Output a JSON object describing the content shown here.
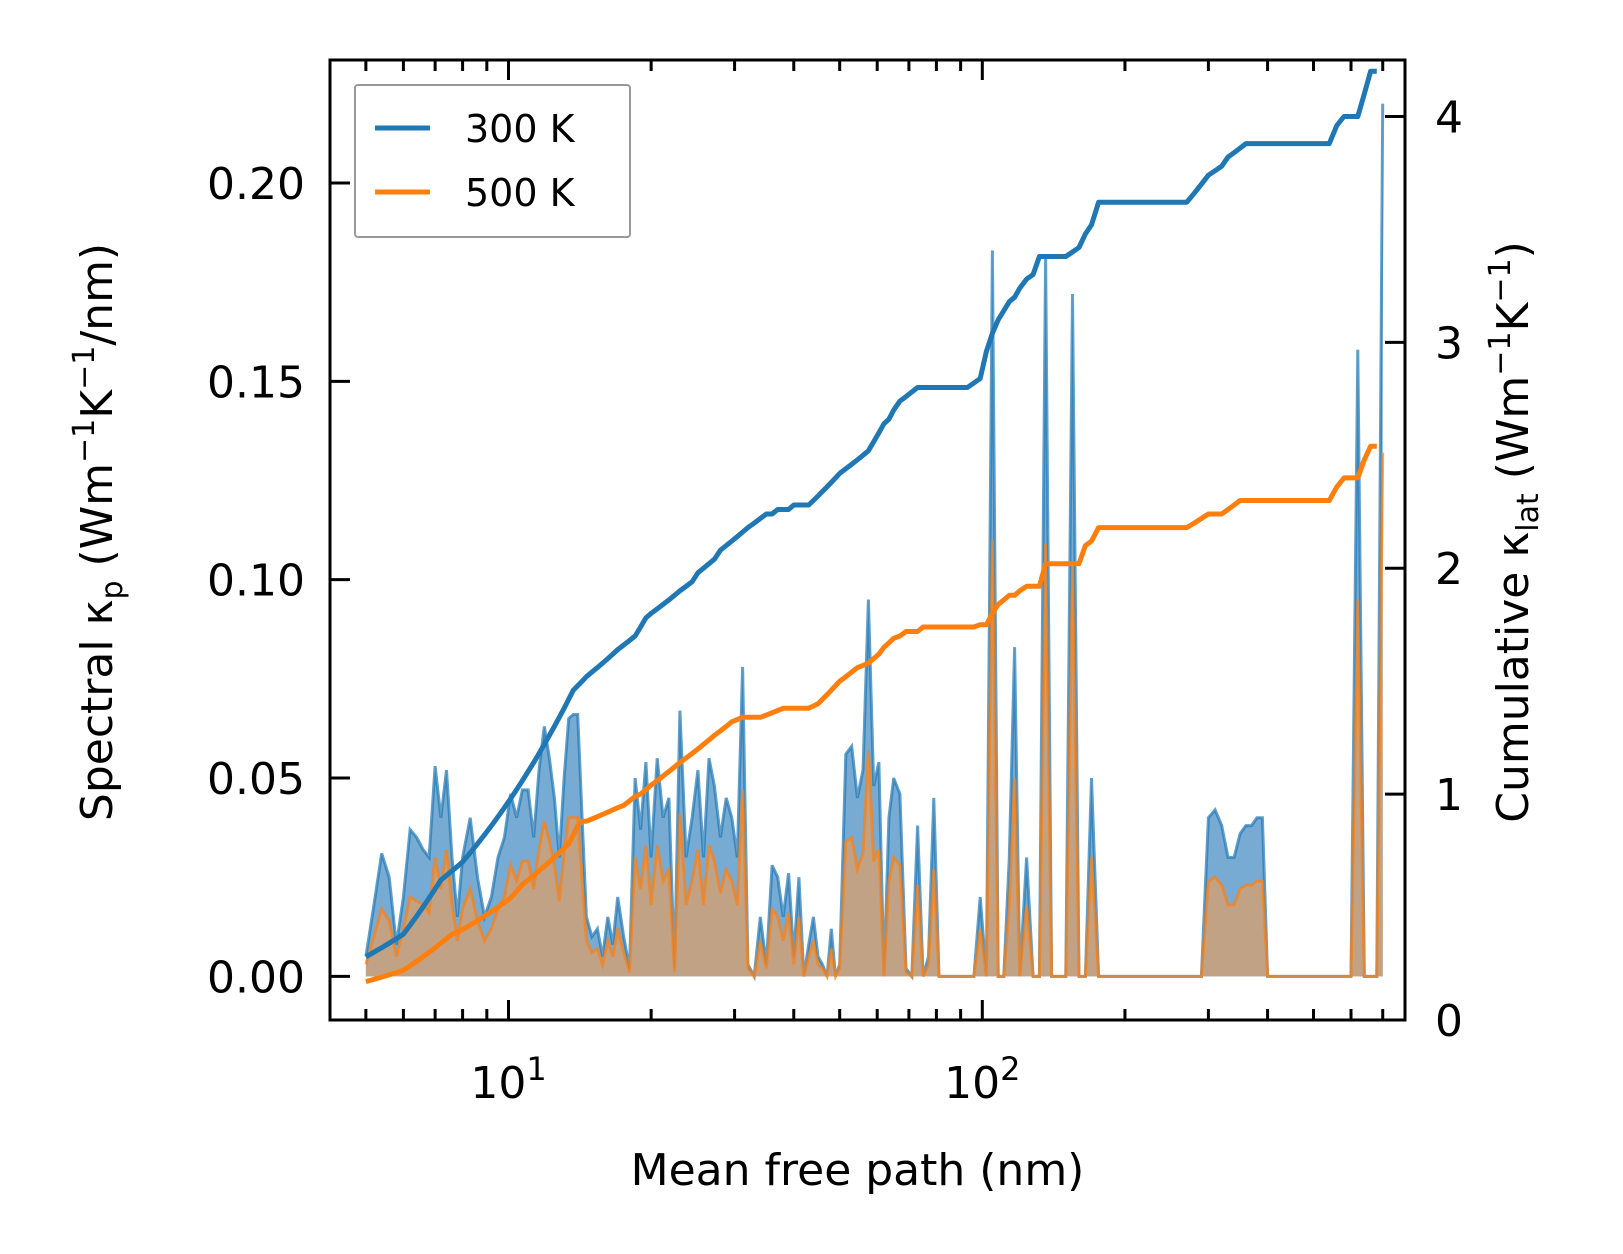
{
  "chart_data": {
    "type": "line",
    "x_scale": "log",
    "xlabel": "Mean free path (nm)",
    "ylabel_left": {
      "text": "Spectral κ",
      "sub": "p",
      "units_pre": " (Wm",
      "sup1": "−1",
      "mid": "K",
      "sup2": "−1",
      "units_post": "/nm)"
    },
    "ylabel_right": {
      "text": "Cumulative κ",
      "sub": "lat",
      "units_pre": " (Wm",
      "sup1": "−1",
      "mid": "K",
      "sup2": "−1",
      "units_post": ")"
    },
    "xlim": [
      4.2,
      780
    ],
    "ylim_left": [
      -0.011,
      0.231
    ],
    "ylim_right": [
      0,
      4.25
    ],
    "x_ticks": [
      {
        "value": 10,
        "base": "10",
        "exp": "1"
      },
      {
        "value": 100,
        "base": "10",
        "exp": "2"
      }
    ],
    "y_ticks_left": [
      "0.00",
      "0.05",
      "0.10",
      "0.15",
      "0.20"
    ],
    "y_ticks_right": [
      "0",
      "1",
      "2",
      "3",
      "4"
    ],
    "legend": {
      "position": "top-left",
      "entries": [
        "300 K",
        "500 K"
      ]
    },
    "colors": {
      "300 K": "#1f77b4",
      "500 K": "#ff7f0e",
      "fill_300": "#4a8fc4",
      "fill_500": "#d4a070"
    },
    "x": [
      5.0,
      5.2,
      5.4,
      5.6,
      5.8,
      6.0,
      6.2,
      6.4,
      6.6,
      6.8,
      7.0,
      7.2,
      7.4,
      7.6,
      7.8,
      8.0,
      8.3,
      8.6,
      8.9,
      9.2,
      9.5,
      9.8,
      10.1,
      10.4,
      10.7,
      11.0,
      11.3,
      11.6,
      11.9,
      12.2,
      12.5,
      12.8,
      13.1,
      13.4,
      13.7,
      14.0,
      14.3,
      14.6,
      15.0,
      15.4,
      15.8,
      16.2,
      16.6,
      17.0,
      17.5,
      18.0,
      18.5,
      19.0,
      19.5,
      20.0,
      20.6,
      21.2,
      21.8,
      22.4,
      23.0,
      23.7,
      24.4,
      25.1,
      25.8,
      26.5,
      27.2,
      28.0,
      28.8,
      29.6,
      30.4,
      31.2,
      32.0,
      33.0,
      34.0,
      35.0,
      36.0,
      37.0,
      38.0,
      39.0,
      40.0,
      41.0,
      42.0,
      43.0,
      44.0,
      45.0,
      46.0,
      47.0,
      48.0,
      49.0,
      50.0,
      51.5,
      53.0,
      54.5,
      56.0,
      57.5,
      59.0,
      60.5,
      62.0,
      63.5,
      65.0,
      67.0,
      69.0,
      71.0,
      73.0,
      75.0,
      77.0,
      79.0,
      81.0,
      84.0,
      87.0,
      90.0,
      93.0,
      96.0,
      99.0,
      102.0,
      105.0,
      108.0,
      111.0,
      114.0,
      117.0,
      120.0,
      124.0,
      128.0,
      132.0,
      136.0,
      140.0,
      145.0,
      150.0,
      155.0,
      160.0,
      165.0,
      170.0,
      176.0,
      182.0,
      188.0,
      195.0,
      202.0,
      210.0,
      220.0,
      230.0,
      240.0,
      250.0,
      260.0,
      270.0,
      280.0,
      290.0,
      300.0,
      310.0,
      320.0,
      330.0,
      340.0,
      350.0,
      360.0,
      370.0,
      380.0,
      390.0,
      400.0,
      420.0,
      440.0,
      460.0,
      480.0,
      500.0,
      520.0,
      540.0,
      560.0,
      580.0,
      600.0,
      620.0,
      640.0,
      660.0,
      680.0,
      700.0
    ],
    "series": [
      {
        "name": "300 K",
        "spectral": [
          0.005,
          0.018,
          0.031,
          0.025,
          0.008,
          0.02,
          0.037,
          0.035,
          0.032,
          0.03,
          0.053,
          0.04,
          0.052,
          0.03,
          0.015,
          0.03,
          0.04,
          0.025,
          0.015,
          0.02,
          0.03,
          0.035,
          0.046,
          0.04,
          0.047,
          0.047,
          0.035,
          0.052,
          0.063,
          0.055,
          0.045,
          0.03,
          0.05,
          0.065,
          0.066,
          0.066,
          0.04,
          0.015,
          0.01,
          0.012,
          0.005,
          0.015,
          0.008,
          0.02,
          0.01,
          0.002,
          0.05,
          0.037,
          0.054,
          0.03,
          0.055,
          0.04,
          0.045,
          0.002,
          0.067,
          0.03,
          0.04,
          0.052,
          0.03,
          0.055,
          0.048,
          0.035,
          0.045,
          0.04,
          0.03,
          0.078,
          0.003,
          0.0,
          0.015,
          0.003,
          0.028,
          0.025,
          0.015,
          0.026,
          0.005,
          0.025,
          0.0,
          0.008,
          0.015,
          0.005,
          0.003,
          0.0,
          0.012,
          0.0,
          0.003,
          0.056,
          0.058,
          0.045,
          0.052,
          0.095,
          0.048,
          0.054,
          0.0,
          0.04,
          0.05,
          0.046,
          0.002,
          0.0,
          0.038,
          0.0,
          0.005,
          0.045,
          0.0,
          0.0,
          0.0,
          0.0,
          0.0,
          0.0,
          0.02,
          0.0,
          0.183,
          0.0,
          0.0,
          0.03,
          0.083,
          0.0,
          0.03,
          0.0,
          0.0,
          0.182,
          0.0,
          0.0,
          0.0,
          0.172,
          0.0,
          0.0,
          0.05,
          0.0,
          0.0,
          0.0,
          0.0,
          0.0,
          0.0,
          0.0,
          0.0,
          0.0,
          0.0,
          0.0,
          0.0,
          0.0,
          0.0,
          0.04,
          0.042,
          0.038,
          0.03,
          0.03,
          0.036,
          0.038,
          0.038,
          0.04,
          0.04,
          0.0,
          0.0,
          0.0,
          0.0,
          0.0,
          0.0,
          0.0,
          0.0,
          0.0,
          0.0,
          0.0,
          0.158,
          0.0,
          0.0,
          0.0,
          0.22,
          0.0,
          0.0
        ],
        "cumulative": [
          0.28,
          0.3,
          0.32,
          0.34,
          0.36,
          0.38,
          0.42,
          0.46,
          0.5,
          0.54,
          0.58,
          0.62,
          0.64,
          0.66,
          0.68,
          0.7,
          0.74,
          0.78,
          0.82,
          0.86,
          0.9,
          0.94,
          0.98,
          1.02,
          1.06,
          1.1,
          1.14,
          1.18,
          1.22,
          1.26,
          1.3,
          1.34,
          1.38,
          1.42,
          1.46,
          1.48,
          1.5,
          1.52,
          1.54,
          1.56,
          1.58,
          1.6,
          1.62,
          1.64,
          1.66,
          1.68,
          1.7,
          1.74,
          1.78,
          1.8,
          1.82,
          1.84,
          1.86,
          1.88,
          1.9,
          1.92,
          1.94,
          1.98,
          2.0,
          2.02,
          2.04,
          2.08,
          2.1,
          2.12,
          2.14,
          2.16,
          2.18,
          2.2,
          2.22,
          2.24,
          2.24,
          2.26,
          2.26,
          2.26,
          2.28,
          2.28,
          2.28,
          2.28,
          2.3,
          2.32,
          2.34,
          2.36,
          2.38,
          2.4,
          2.42,
          2.44,
          2.46,
          2.48,
          2.5,
          2.52,
          2.56,
          2.6,
          2.64,
          2.66,
          2.7,
          2.74,
          2.76,
          2.78,
          2.8,
          2.8,
          2.8,
          2.8,
          2.8,
          2.8,
          2.8,
          2.8,
          2.8,
          2.82,
          2.84,
          2.96,
          3.04,
          3.1,
          3.14,
          3.18,
          3.2,
          3.24,
          3.28,
          3.3,
          3.38,
          3.38,
          3.38,
          3.38,
          3.38,
          3.4,
          3.42,
          3.48,
          3.52,
          3.62,
          3.62,
          3.62,
          3.62,
          3.62,
          3.62,
          3.62,
          3.62,
          3.62,
          3.62,
          3.62,
          3.62,
          3.66,
          3.7,
          3.74,
          3.76,
          3.78,
          3.82,
          3.84,
          3.86,
          3.88,
          3.88,
          3.88,
          3.88,
          3.88,
          3.88,
          3.88,
          3.88,
          3.88,
          3.88,
          3.88,
          3.88,
          3.96,
          4.0,
          4.0,
          4.0,
          4.1,
          4.2,
          4.2
        ]
      },
      {
        "name": "500 K",
        "spectral": [
          0.003,
          0.01,
          0.017,
          0.014,
          0.005,
          0.012,
          0.02,
          0.019,
          0.018,
          0.016,
          0.03,
          0.022,
          0.032,
          0.018,
          0.009,
          0.017,
          0.022,
          0.014,
          0.009,
          0.012,
          0.017,
          0.02,
          0.028,
          0.024,
          0.029,
          0.029,
          0.022,
          0.032,
          0.039,
          0.034,
          0.028,
          0.019,
          0.031,
          0.04,
          0.04,
          0.04,
          0.024,
          0.009,
          0.006,
          0.007,
          0.003,
          0.009,
          0.005,
          0.012,
          0.006,
          0.001,
          0.03,
          0.022,
          0.033,
          0.018,
          0.033,
          0.024,
          0.027,
          0.001,
          0.041,
          0.018,
          0.024,
          0.032,
          0.018,
          0.033,
          0.029,
          0.021,
          0.027,
          0.024,
          0.018,
          0.047,
          0.002,
          0.0,
          0.009,
          0.002,
          0.017,
          0.015,
          0.009,
          0.016,
          0.003,
          0.015,
          0.0,
          0.005,
          0.009,
          0.003,
          0.002,
          0.0,
          0.007,
          0.0,
          0.002,
          0.034,
          0.035,
          0.027,
          0.031,
          0.057,
          0.029,
          0.032,
          0.0,
          0.024,
          0.03,
          0.028,
          0.001,
          0.0,
          0.023,
          0.0,
          0.003,
          0.027,
          0.0,
          0.0,
          0.0,
          0.0,
          0.0,
          0.0,
          0.012,
          0.0,
          0.11,
          0.0,
          0.0,
          0.018,
          0.05,
          0.0,
          0.018,
          0.0,
          0.0,
          0.109,
          0.0,
          0.0,
          0.0,
          0.103,
          0.0,
          0.0,
          0.03,
          0.0,
          0.0,
          0.0,
          0.0,
          0.0,
          0.0,
          0.0,
          0.0,
          0.0,
          0.0,
          0.0,
          0.0,
          0.0,
          0.0,
          0.024,
          0.025,
          0.023,
          0.018,
          0.018,
          0.022,
          0.023,
          0.023,
          0.024,
          0.024,
          0.0,
          0.0,
          0.0,
          0.0,
          0.0,
          0.0,
          0.0,
          0.0,
          0.0,
          0.0,
          0.0,
          0.095,
          0.0,
          0.0,
          0.0,
          0.132,
          0.0,
          0.0
        ],
        "cumulative": [
          0.17,
          0.18,
          0.19,
          0.2,
          0.21,
          0.22,
          0.24,
          0.26,
          0.28,
          0.3,
          0.32,
          0.34,
          0.36,
          0.38,
          0.39,
          0.4,
          0.42,
          0.44,
          0.46,
          0.48,
          0.5,
          0.52,
          0.54,
          0.57,
          0.6,
          0.62,
          0.64,
          0.66,
          0.68,
          0.7,
          0.72,
          0.74,
          0.76,
          0.78,
          0.82,
          0.86,
          0.88,
          0.88,
          0.89,
          0.9,
          0.91,
          0.92,
          0.93,
          0.94,
          0.95,
          0.97,
          0.99,
          1.0,
          1.02,
          1.04,
          1.06,
          1.08,
          1.1,
          1.12,
          1.14,
          1.16,
          1.18,
          1.2,
          1.22,
          1.24,
          1.26,
          1.28,
          1.3,
          1.32,
          1.33,
          1.34,
          1.34,
          1.34,
          1.34,
          1.35,
          1.36,
          1.37,
          1.38,
          1.38,
          1.38,
          1.38,
          1.38,
          1.38,
          1.39,
          1.4,
          1.42,
          1.44,
          1.46,
          1.48,
          1.5,
          1.52,
          1.54,
          1.56,
          1.57,
          1.58,
          1.6,
          1.62,
          1.65,
          1.67,
          1.69,
          1.7,
          1.72,
          1.72,
          1.72,
          1.74,
          1.74,
          1.74,
          1.74,
          1.74,
          1.74,
          1.74,
          1.74,
          1.74,
          1.75,
          1.75,
          1.8,
          1.84,
          1.86,
          1.88,
          1.88,
          1.9,
          1.92,
          1.92,
          1.92,
          2.02,
          2.02,
          2.02,
          2.02,
          2.02,
          2.02,
          2.1,
          2.12,
          2.18,
          2.18,
          2.18,
          2.18,
          2.18,
          2.18,
          2.18,
          2.18,
          2.18,
          2.18,
          2.18,
          2.18,
          2.2,
          2.22,
          2.24,
          2.24,
          2.24,
          2.26,
          2.28,
          2.3,
          2.3,
          2.3,
          2.3,
          2.3,
          2.3,
          2.3,
          2.3,
          2.3,
          2.3,
          2.3,
          2.3,
          2.3,
          2.36,
          2.4,
          2.4,
          2.4,
          2.48,
          2.54,
          2.54
        ]
      }
    ]
  }
}
